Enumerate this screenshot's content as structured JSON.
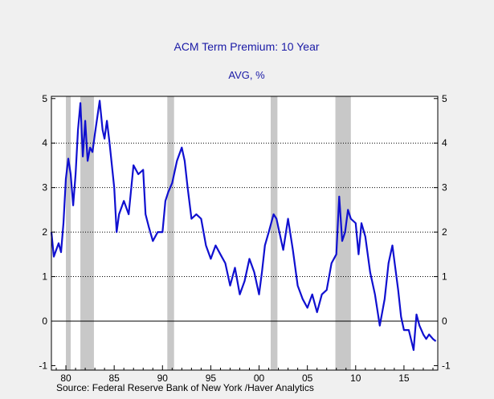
{
  "chart_data": {
    "type": "line",
    "title": "ACM Term Premium: 10 Year",
    "subtitle": "AVG, %",
    "source": "Source:  Federal Reserve Bank of New York /Haver Analytics",
    "x_axis": {
      "range": [
        1978.5,
        2018.5
      ],
      "ticks": [
        1980,
        1985,
        1990,
        1995,
        2000,
        2005,
        2010,
        2015
      ],
      "tick_labels": [
        "80",
        "85",
        "90",
        "95",
        "00",
        "05",
        "10",
        "15"
      ]
    },
    "y_axis": {
      "range": [
        -1.1,
        5.05
      ],
      "ticks": [
        -1,
        0,
        1,
        2,
        3,
        4,
        5
      ],
      "tick_labels": [
        "-1",
        "0",
        "1",
        "2",
        "3",
        "4",
        "5"
      ],
      "gridlines": [
        1,
        2,
        3,
        4
      ]
    },
    "zero_line": 0,
    "grid": true,
    "recessions": [
      [
        1980.0,
        1980.5
      ],
      [
        1981.5,
        1982.9
      ],
      [
        1990.5,
        1991.2
      ],
      [
        2001.2,
        2001.9
      ],
      [
        2007.9,
        2009.5
      ]
    ],
    "series": [
      {
        "color": "#1010d0",
        "x": [
          1978.5,
          1978.75,
          1979.0,
          1979.25,
          1979.5,
          1979.75,
          1980.0,
          1980.25,
          1980.5,
          1980.75,
          1981.0,
          1981.25,
          1981.5,
          1981.75,
          1982.0,
          1982.25,
          1982.5,
          1982.75,
          1983.0,
          1983.5,
          1983.8,
          1984.0,
          1984.25,
          1984.5,
          1985.0,
          1985.25,
          1985.5,
          1986.0,
          1986.5,
          1987.0,
          1987.5,
          1988.0,
          1988.25,
          1988.6,
          1989.0,
          1989.5,
          1990.0,
          1990.3,
          1990.6,
          1991.0,
          1991.5,
          1992.0,
          1992.3,
          1992.6,
          1993.0,
          1993.5,
          1994.0,
          1994.5,
          1995.0,
          1995.5,
          1996.0,
          1996.5,
          1997.0,
          1997.5,
          1998.0,
          1998.5,
          1999.0,
          1999.5,
          2000.0,
          2000.3,
          2000.6,
          2001.0,
          2001.5,
          2001.8,
          2002.0,
          2002.5,
          2003.0,
          2003.5,
          2004.0,
          2004.5,
          2005.0,
          2005.5,
          2006.0,
          2006.5,
          2007.0,
          2007.5,
          2008.0,
          2008.3,
          2008.6,
          2008.9,
          2009.2,
          2009.5,
          2010.0,
          2010.3,
          2010.6,
          2011.0,
          2011.5,
          2012.0,
          2012.5,
          2013.0,
          2013.4,
          2013.8,
          2014.1,
          2014.4,
          2014.7,
          2015.0,
          2015.5,
          2016.0,
          2016.3,
          2016.6,
          2017.0,
          2017.3,
          2017.6,
          2018.0,
          2018.3
        ],
        "y": [
          2.0,
          1.45,
          1.6,
          1.75,
          1.55,
          2.2,
          3.2,
          3.65,
          3.3,
          2.6,
          3.3,
          4.3,
          4.9,
          3.7,
          4.5,
          3.6,
          3.9,
          3.8,
          4.2,
          4.95,
          4.3,
          4.1,
          4.5,
          4.05,
          3.0,
          2.0,
          2.4,
          2.7,
          2.4,
          3.5,
          3.3,
          3.4,
          2.4,
          2.1,
          1.8,
          2.0,
          2.0,
          2.7,
          2.9,
          3.1,
          3.6,
          3.9,
          3.6,
          3.0,
          2.3,
          2.4,
          2.3,
          1.7,
          1.4,
          1.7,
          1.5,
          1.3,
          0.8,
          1.2,
          0.6,
          0.9,
          1.4,
          1.1,
          0.6,
          1.1,
          1.7,
          2.0,
          2.4,
          2.3,
          2.1,
          1.6,
          2.3,
          1.6,
          0.8,
          0.5,
          0.3,
          0.6,
          0.2,
          0.6,
          0.7,
          1.3,
          1.5,
          2.8,
          1.8,
          2.0,
          2.5,
          2.3,
          2.2,
          1.5,
          2.2,
          1.9,
          1.1,
          0.6,
          -0.1,
          0.5,
          1.3,
          1.7,
          1.2,
          0.7,
          0.1,
          -0.2,
          -0.2,
          -0.65,
          0.15,
          -0.1,
          -0.3,
          -0.4,
          -0.3,
          -0.4,
          -0.45
        ]
      }
    ]
  }
}
